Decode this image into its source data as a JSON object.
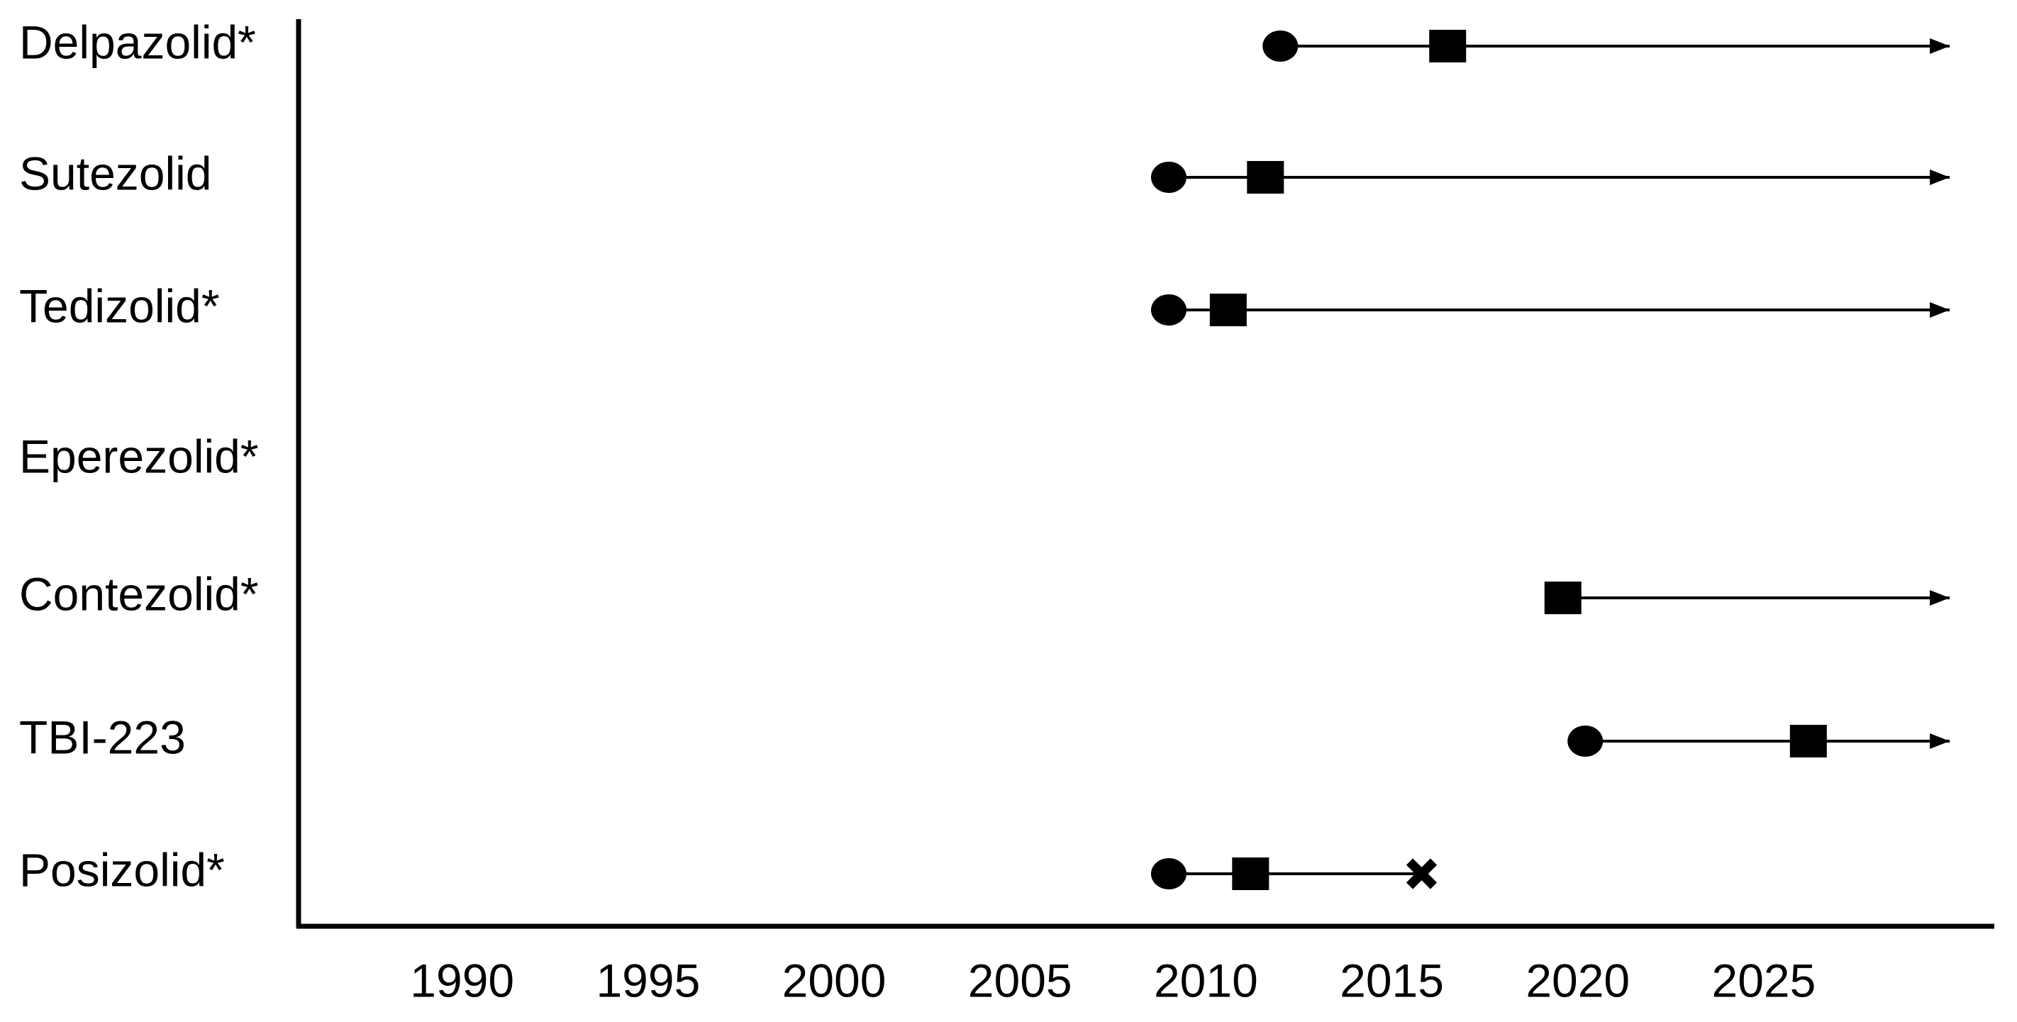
{
  "chart_data": {
    "type": "timeline",
    "rows": [
      {
        "name": "Delpazolid*",
        "start": 2012,
        "milestone": 2016.5,
        "discontinued": null,
        "arrow_end": 2030
      },
      {
        "name": "Sutezolid",
        "start": 2009,
        "milestone": 2011.6,
        "discontinued": null,
        "arrow_end": 2030
      },
      {
        "name": "Tedizolid*",
        "start": 2009,
        "milestone": 2010.6,
        "discontinued": null,
        "arrow_end": 2030
      },
      {
        "name": "Eperezolid*",
        "start": null,
        "milestone": null,
        "discontinued": null,
        "arrow_end": null
      },
      {
        "name": "Contezolid*",
        "start": null,
        "milestone": 2019.6,
        "discontinued": null,
        "arrow_end": 2030
      },
      {
        "name": "TBI-223",
        "start": 2020.2,
        "milestone": 2026.2,
        "discontinued": null,
        "arrow_end": 2030
      },
      {
        "name": "Posizolid*",
        "start": 2009,
        "milestone": 2011.2,
        "discontinued": 2015.8,
        "arrow_end": null
      }
    ],
    "xlim": [
      1985.6,
      2031.2
    ],
    "xticks": [
      1990,
      1995,
      2000,
      2005,
      2010,
      2015,
      2020,
      2025
    ],
    "color": "#000000"
  }
}
